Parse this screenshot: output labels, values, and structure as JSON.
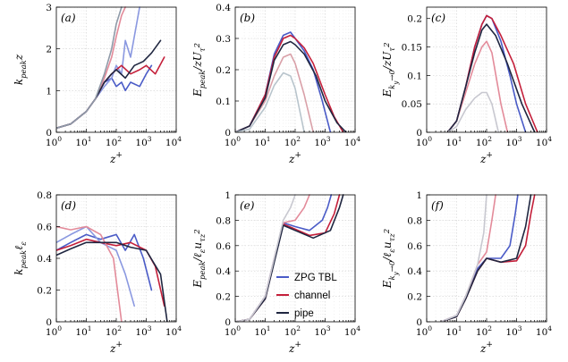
{
  "chart_data": [
    {
      "id": "a",
      "panel_label": "(a)",
      "type": "line",
      "xlabel_base": "z",
      "xlabel_sup": "+",
      "ylabel_html": "k<sub>peak</sub>z",
      "ylabel_text": "kpeak z",
      "xscale": "log",
      "xlim": [
        1,
        10000
      ],
      "ylim": [
        0,
        3
      ],
      "yticks": [
        "0",
        "1",
        "2",
        "3"
      ],
      "ytick_values": [
        0,
        1,
        2,
        3
      ],
      "series": [
        {
          "name": "ZPG TBL",
          "color": "#4a5bc7",
          "x": [
            1,
            3,
            10,
            20,
            40,
            70,
            100,
            150,
            200,
            300,
            600,
            1000,
            1500
          ],
          "y": [
            0.1,
            0.2,
            0.5,
            0.8,
            1.2,
            1.3,
            1.1,
            1.2,
            1.0,
            1.2,
            1.1,
            1.4,
            1.6
          ]
        },
        {
          "name": "ZPG TBL",
          "color": "#8a98e0",
          "x": [
            1,
            3,
            10,
            20,
            40,
            70,
            100,
            150,
            200,
            300,
            450,
            600
          ],
          "y": [
            0.1,
            0.2,
            0.5,
            0.8,
            1.1,
            1.3,
            1.6,
            1.4,
            2.2,
            1.8,
            2.5,
            3.0
          ]
        },
        {
          "name": "channel",
          "color": "#c41f3a",
          "x": [
            1,
            3,
            10,
            20,
            40,
            70,
            100,
            150,
            300,
            600,
            1000,
            2000,
            4000
          ],
          "y": [
            0.1,
            0.2,
            0.5,
            0.8,
            1.2,
            1.4,
            1.5,
            1.6,
            1.4,
            1.5,
            1.6,
            1.4,
            1.8
          ]
        },
        {
          "name": "channel",
          "color": "#e38b9a",
          "x": [
            1,
            3,
            10,
            20,
            40,
            70,
            100,
            150,
            200
          ],
          "y": [
            0.1,
            0.2,
            0.5,
            0.8,
            1.3,
            1.8,
            2.3,
            2.8,
            3.0
          ]
        },
        {
          "name": "pipe",
          "color": "#1f2640",
          "x": [
            1,
            3,
            10,
            20,
            40,
            70,
            100,
            200,
            400,
            800,
            1500,
            3000
          ],
          "y": [
            0.1,
            0.2,
            0.5,
            0.8,
            1.2,
            1.4,
            1.5,
            1.3,
            1.6,
            1.7,
            1.9,
            2.2
          ]
        },
        {
          "name": "pipe",
          "color": "#8f9aa8",
          "x": [
            1,
            3,
            10,
            20,
            40,
            70,
            100,
            150
          ],
          "y": [
            0.1,
            0.2,
            0.5,
            0.8,
            1.4,
            2.0,
            2.6,
            3.0
          ]
        }
      ]
    },
    {
      "id": "b",
      "panel_label": "(b)",
      "type": "line",
      "xlabel_base": "z",
      "xlabel_sup": "+",
      "ylabel_html": "E<sub>peak</sub>/zU<sub>τ</sub><sup>2</sup>",
      "ylabel_text": "Epeak / z U_tau^2",
      "xscale": "log",
      "xlim": [
        1,
        10000
      ],
      "ylim": [
        0,
        0.4
      ],
      "yticks": [
        "0",
        "0.1",
        "0.2",
        "0.3",
        "0.4"
      ],
      "ytick_values": [
        0,
        0.1,
        0.2,
        0.3,
        0.4
      ],
      "series": [
        {
          "name": "ZPG TBL",
          "color": "#4a5bc7",
          "x": [
            1,
            3,
            10,
            20,
            40,
            70,
            100,
            200,
            400,
            800,
            1500
          ],
          "y": [
            0.0,
            0.02,
            0.12,
            0.25,
            0.31,
            0.32,
            0.3,
            0.26,
            0.2,
            0.1,
            0.0
          ]
        },
        {
          "name": "channel",
          "color": "#c41f3a",
          "x": [
            1,
            3,
            10,
            20,
            40,
            70,
            100,
            200,
            400,
            1000,
            2000,
            4000
          ],
          "y": [
            0.0,
            0.02,
            0.12,
            0.24,
            0.3,
            0.31,
            0.3,
            0.27,
            0.22,
            0.12,
            0.05,
            0.0
          ]
        },
        {
          "name": "channel",
          "color": "#d9a0a8",
          "x": [
            1,
            3,
            10,
            20,
            40,
            70,
            100,
            200,
            400
          ],
          "y": [
            0.0,
            0.02,
            0.1,
            0.18,
            0.24,
            0.25,
            0.22,
            0.12,
            0.0
          ]
        },
        {
          "name": "pipe",
          "color": "#1f2640",
          "x": [
            1,
            3,
            10,
            20,
            40,
            70,
            100,
            200,
            500,
            1000,
            2500,
            5000
          ],
          "y": [
            0.0,
            0.02,
            0.11,
            0.23,
            0.28,
            0.29,
            0.28,
            0.25,
            0.18,
            0.1,
            0.03,
            0.0
          ]
        },
        {
          "name": "pipe",
          "color": "#b8c4cc",
          "x": [
            1,
            3,
            10,
            20,
            40,
            70,
            100,
            200
          ],
          "y": [
            0.0,
            0.01,
            0.08,
            0.15,
            0.19,
            0.18,
            0.14,
            0.0
          ]
        }
      ]
    },
    {
      "id": "c",
      "panel_label": "(c)",
      "type": "line",
      "xlabel_base": "z",
      "xlabel_sup": "+",
      "ylabel_html": "E<sub>k<sub>y</sub>→0</sub>/zU<sub>τ</sub><sup>2</sup>",
      "ylabel_text": "E_{ky->0} / z U_tau^2",
      "xscale": "log",
      "xlim": [
        1,
        10000
      ],
      "ylim": [
        0,
        0.22
      ],
      "yticks": [
        "0",
        "0.05",
        "0.1",
        "0.15",
        "0.2"
      ],
      "ytick_values": [
        0,
        0.05,
        0.1,
        0.15,
        0.2
      ],
      "series": [
        {
          "name": "ZPG TBL",
          "color": "#4a5bc7",
          "x": [
            5,
            10,
            20,
            40,
            70,
            100,
            150,
            300,
            600,
            1000,
            2000
          ],
          "y": [
            0.0,
            0.02,
            0.08,
            0.15,
            0.19,
            0.205,
            0.2,
            0.16,
            0.1,
            0.05,
            0.0
          ]
        },
        {
          "name": "channel",
          "color": "#c41f3a",
          "x": [
            5,
            10,
            20,
            40,
            70,
            100,
            150,
            300,
            800,
            2000,
            5000
          ],
          "y": [
            0.0,
            0.02,
            0.08,
            0.15,
            0.19,
            0.205,
            0.2,
            0.17,
            0.12,
            0.05,
            0.0
          ]
        },
        {
          "name": "channel",
          "color": "#e38b9a",
          "x": [
            5,
            10,
            20,
            40,
            70,
            100,
            150,
            300,
            500
          ],
          "y": [
            0.0,
            0.02,
            0.07,
            0.12,
            0.15,
            0.16,
            0.14,
            0.05,
            0.0
          ]
        },
        {
          "name": "pipe",
          "color": "#1f2640",
          "x": [
            5,
            10,
            20,
            40,
            70,
            100,
            200,
            500,
            1500,
            4000
          ],
          "y": [
            0.0,
            0.02,
            0.08,
            0.14,
            0.18,
            0.19,
            0.17,
            0.12,
            0.05,
            0.0
          ]
        },
        {
          "name": "pipe",
          "color": "#c8c8d0",
          "x": [
            5,
            10,
            20,
            40,
            70,
            100,
            150,
            250
          ],
          "y": [
            0.0,
            0.01,
            0.04,
            0.06,
            0.07,
            0.07,
            0.05,
            0.0
          ]
        }
      ]
    },
    {
      "id": "d",
      "panel_label": "(d)",
      "type": "line",
      "xlabel_base": "z",
      "xlabel_sup": "+",
      "ylabel_html": "k<sub>peak</sub>ℓ<sub>ε</sub>",
      "ylabel_text": "kpeak l_eps",
      "xscale": "log",
      "xlim": [
        1,
        10000
      ],
      "ylim": [
        0,
        0.8
      ],
      "yticks": [
        "0",
        "0.2",
        "0.4",
        "0.6",
        "0.8"
      ],
      "ytick_values": [
        0,
        0.2,
        0.4,
        0.6,
        0.8
      ],
      "series": [
        {
          "name": "ZPG TBL",
          "color": "#4a5bc7",
          "x": [
            1,
            3,
            10,
            30,
            100,
            200,
            400,
            800,
            1500
          ],
          "y": [
            0.45,
            0.5,
            0.55,
            0.52,
            0.55,
            0.45,
            0.55,
            0.4,
            0.2
          ]
        },
        {
          "name": "ZPG TBL",
          "color": "#8a98e0",
          "x": [
            1,
            3,
            10,
            30,
            100,
            200,
            400
          ],
          "y": [
            0.5,
            0.55,
            0.6,
            0.5,
            0.45,
            0.3,
            0.1
          ]
        },
        {
          "name": "channel",
          "color": "#c41f3a",
          "x": [
            1,
            3,
            10,
            30,
            100,
            300,
            1000,
            2000,
            4000
          ],
          "y": [
            0.45,
            0.48,
            0.52,
            0.5,
            0.48,
            0.5,
            0.45,
            0.35,
            0.1
          ]
        },
        {
          "name": "channel",
          "color": "#e38b9a",
          "x": [
            1,
            3,
            10,
            30,
            80,
            150
          ],
          "y": [
            0.6,
            0.58,
            0.6,
            0.55,
            0.4,
            0.0
          ]
        },
        {
          "name": "pipe",
          "color": "#1f2640",
          "x": [
            1,
            3,
            10,
            30,
            100,
            300,
            1000,
            3000,
            5000
          ],
          "y": [
            0.42,
            0.46,
            0.5,
            0.5,
            0.5,
            0.47,
            0.45,
            0.3,
            0.0
          ]
        }
      ]
    },
    {
      "id": "e",
      "panel_label": "(e)",
      "type": "line",
      "xlabel_base": "z",
      "xlabel_sup": "+",
      "ylabel_html": "E<sub>peak</sub>/ℓ<sub>ε</sub>u<sub>τz</sub><sup>2</sup>",
      "ylabel_text": "Epeak / l_eps u_tauz^2",
      "xscale": "log",
      "xlim": [
        1,
        10000
      ],
      "ylim": [
        0,
        1
      ],
      "yticks": [
        "0",
        "0.2",
        "0.4",
        "0.6",
        "0.8",
        "1"
      ],
      "ytick_values": [
        0,
        0.2,
        0.4,
        0.6,
        0.8,
        1
      ],
      "series": [
        {
          "name": "ZPG TBL",
          "color": "#4a5bc7",
          "x": [
            1,
            3,
            10,
            20,
            40,
            100,
            300,
            800,
            1200,
            1600
          ],
          "y": [
            0.0,
            0.02,
            0.2,
            0.5,
            0.78,
            0.75,
            0.72,
            0.8,
            0.9,
            1.0
          ]
        },
        {
          "name": "channel",
          "color": "#c41f3a",
          "x": [
            1,
            3,
            10,
            20,
            40,
            100,
            300,
            1000,
            2000,
            3000
          ],
          "y": [
            0.0,
            0.02,
            0.18,
            0.48,
            0.77,
            0.73,
            0.68,
            0.7,
            0.85,
            1.0
          ]
        },
        {
          "name": "channel",
          "color": "#e38b9a",
          "x": [
            1,
            3,
            10,
            20,
            40,
            100,
            200,
            300
          ],
          "y": [
            0.0,
            0.02,
            0.2,
            0.5,
            0.78,
            0.8,
            0.9,
            1.0
          ]
        },
        {
          "name": "pipe",
          "color": "#1f2640",
          "x": [
            1,
            3,
            10,
            20,
            40,
            100,
            400,
            1500,
            3000,
            4000
          ],
          "y": [
            0.0,
            0.02,
            0.18,
            0.47,
            0.76,
            0.72,
            0.66,
            0.72,
            0.9,
            1.0
          ]
        },
        {
          "name": "pipe",
          "color": "#c8c8d0",
          "x": [
            1,
            3,
            10,
            20,
            40,
            70,
            100
          ],
          "y": [
            0.0,
            0.02,
            0.2,
            0.5,
            0.8,
            0.9,
            1.0
          ]
        }
      ]
    },
    {
      "id": "f",
      "panel_label": "(f)",
      "type": "line",
      "xlabel_base": "z",
      "xlabel_sup": "+",
      "ylabel_html": "E<sub>k<sub>y</sub>→0</sub>/ℓ<sub>ε</sub>u<sub>τz</sub><sup>2</sup>",
      "ylabel_text": "E_{ky->0} / l_eps u_tauz^2",
      "xscale": "log",
      "xlim": [
        1,
        10000
      ],
      "ylim": [
        0,
        1
      ],
      "yticks": [
        "0",
        "0.2",
        "0.4",
        "0.6",
        "0.8",
        "1"
      ],
      "ytick_values": [
        0,
        0.2,
        0.4,
        0.6,
        0.8,
        1
      ],
      "series": [
        {
          "name": "ZPG TBL",
          "color": "#4a5bc7",
          "x": [
            3,
            10,
            20,
            50,
            100,
            300,
            600,
            900,
            1100
          ],
          "y": [
            0.0,
            0.05,
            0.2,
            0.42,
            0.5,
            0.5,
            0.6,
            0.85,
            1.0
          ]
        },
        {
          "name": "channel",
          "color": "#c41f3a",
          "x": [
            3,
            10,
            20,
            50,
            100,
            300,
            1000,
            2000,
            3000,
            4000
          ],
          "y": [
            0.0,
            0.04,
            0.18,
            0.4,
            0.5,
            0.47,
            0.48,
            0.6,
            0.85,
            1.0
          ]
        },
        {
          "name": "channel",
          "color": "#e38b9a",
          "x": [
            3,
            10,
            20,
            50,
            100,
            150,
            200
          ],
          "y": [
            0.0,
            0.05,
            0.2,
            0.45,
            0.55,
            0.8,
            1.0
          ]
        },
        {
          "name": "pipe",
          "color": "#1f2640",
          "x": [
            3,
            10,
            20,
            50,
            100,
            300,
            1000,
            2000,
            3000
          ],
          "y": [
            0.0,
            0.04,
            0.18,
            0.4,
            0.5,
            0.47,
            0.5,
            0.75,
            1.0
          ]
        },
        {
          "name": "pipe",
          "color": "#c8c8d0",
          "x": [
            3,
            10,
            20,
            50,
            80,
            100
          ],
          "y": [
            0.0,
            0.05,
            0.2,
            0.45,
            0.7,
            1.0
          ]
        }
      ]
    }
  ],
  "xticks": [
    "1",
    "10",
    "100",
    "1000",
    "10000"
  ],
  "xtick_exponents": [
    "0",
    "1",
    "2",
    "3",
    "4"
  ],
  "xtick_base": "10",
  "legend": {
    "panel": "e",
    "entries": [
      {
        "label": "ZPG TBL",
        "color": "#4a5bc7"
      },
      {
        "label": "channel",
        "color": "#c41f3a"
      },
      {
        "label": "pipe",
        "color": "#1f2640"
      }
    ]
  }
}
